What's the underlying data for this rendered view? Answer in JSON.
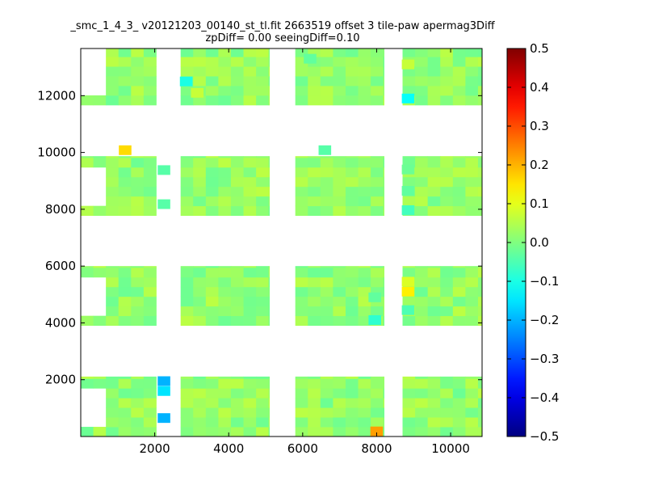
{
  "title_line1": "_smc_1_4_3_ v20121203_00140_st_tl.fit 2663519 offset 3 tile-paw apermag3Diff",
  "title_line2": "zpDiff= 0.00 seeingDiff=0.10",
  "chart_data": {
    "type": "heatmap",
    "title": "_smc_1_4_3_ v20121203_00140_st_tl.fit 2663519 offset 3 tile-paw apermag3Diff",
    "subtitle": "zpDiff= 0.00 seeingDiff=0.10",
    "xlabel": "",
    "ylabel": "",
    "xlim": [
      0,
      10850
    ],
    "ylim": [
      0,
      13660
    ],
    "xticks": [
      2000,
      4000,
      6000,
      8000,
      10000
    ],
    "yticks": [
      2000,
      4000,
      6000,
      8000,
      10000,
      12000
    ],
    "cell_size": 340,
    "colorscale": "jet",
    "colorbar": {
      "min": -0.5,
      "max": 0.5,
      "ticks": [
        0.5,
        0.4,
        0.3,
        0.2,
        0.1,
        0.0,
        -0.1,
        -0.2,
        -0.3,
        -0.4,
        -0.5
      ]
    },
    "base_value": 0.02,
    "regions": [
      {
        "x": [
          0,
          2040
        ],
        "y": [
          0,
          2110
        ]
      },
      {
        "x": [
          2700,
          5100
        ],
        "y": [
          0,
          2110
        ]
      },
      {
        "x": [
          5800,
          8200
        ],
        "y": [
          0,
          2110
        ]
      },
      {
        "x": [
          8700,
          10850
        ],
        "y": [
          0,
          2110
        ]
      },
      {
        "x": [
          0,
          2040
        ],
        "y": [
          3910,
          6000
        ]
      },
      {
        "x": [
          2700,
          5100
        ],
        "y": [
          3910,
          6000
        ]
      },
      {
        "x": [
          5800,
          8200
        ],
        "y": [
          3910,
          6000
        ]
      },
      {
        "x": [
          8700,
          10850
        ],
        "y": [
          3910,
          6000
        ]
      },
      {
        "x": [
          0,
          2040
        ],
        "y": [
          7780,
          9870
        ]
      },
      {
        "x": [
          2700,
          5100
        ],
        "y": [
          7780,
          9870
        ]
      },
      {
        "x": [
          5800,
          8200
        ],
        "y": [
          7780,
          9870
        ]
      },
      {
        "x": [
          8700,
          10850
        ],
        "y": [
          7780,
          9870
        ]
      },
      {
        "x": [
          0,
          2040
        ],
        "y": [
          11670,
          13660
        ]
      },
      {
        "x": [
          2700,
          5100
        ],
        "y": [
          11670,
          13660
        ]
      },
      {
        "x": [
          5800,
          8200
        ],
        "y": [
          11670,
          13660
        ]
      },
      {
        "x": [
          8700,
          10850
        ],
        "y": [
          11670,
          13660
        ]
      }
    ],
    "holes": [
      {
        "x": [
          0,
          700
        ],
        "y": [
          430,
          1700
        ]
      },
      {
        "x": [
          0,
          700
        ],
        "y": [
          4310,
          5580
        ]
      },
      {
        "x": [
          0,
          700
        ],
        "y": [
          8170,
          9440
        ]
      },
      {
        "x": [
          0,
          700
        ],
        "y": [
          12070,
          13660
        ]
      },
      {
        "x": [
          9900,
          10850
        ],
        "y": [
          0,
          0
        ]
      }
    ],
    "anomalies": [
      {
        "x": 2250,
        "y": 1950,
        "value": -0.2
      },
      {
        "x": 2250,
        "y": 1600,
        "value": -0.15
      },
      {
        "x": 2250,
        "y": 650,
        "value": -0.2
      },
      {
        "x": 8000,
        "y": 180,
        "value": 0.22
      },
      {
        "x": 7950,
        "y": 4100,
        "value": -0.08
      },
      {
        "x": 7950,
        "y": 4900,
        "value": -0.03
      },
      {
        "x": 8850,
        "y": 4450,
        "value": -0.05
      },
      {
        "x": 8850,
        "y": 5100,
        "value": 0.14
      },
      {
        "x": 8850,
        "y": 5450,
        "value": 0.09
      },
      {
        "x": 1200,
        "y": 10080,
        "value": 0.16
      },
      {
        "x": 6600,
        "y": 10080,
        "value": -0.04
      },
      {
        "x": 2250,
        "y": 9380,
        "value": -0.04
      },
      {
        "x": 2250,
        "y": 8180,
        "value": -0.04
      },
      {
        "x": 8850,
        "y": 7970,
        "value": -0.06
      },
      {
        "x": 8850,
        "y": 8650,
        "value": -0.03
      },
      {
        "x": 8850,
        "y": 9400,
        "value": -0.02
      },
      {
        "x": 2850,
        "y": 12500,
        "value": -0.1
      },
      {
        "x": 3150,
        "y": 12100,
        "value": 0.07
      },
      {
        "x": 8850,
        "y": 13100,
        "value": 0.07
      },
      {
        "x": 8850,
        "y": 11900,
        "value": -0.12
      },
      {
        "x": 6200,
        "y": 13300,
        "value": -0.03
      }
    ]
  }
}
